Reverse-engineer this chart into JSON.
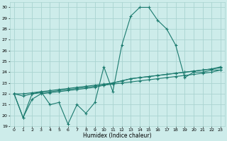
{
  "xlabel": "Humidex (Indice chaleur)",
  "bg_color": "#cdecea",
  "grid_color": "#aad4d0",
  "line_color": "#1a7a6e",
  "xlim": [
    -0.5,
    23.5
  ],
  "ylim": [
    19,
    30.5
  ],
  "yticks": [
    19,
    20,
    21,
    22,
    23,
    24,
    25,
    26,
    27,
    28,
    29,
    30
  ],
  "xticks": [
    0,
    1,
    2,
    3,
    4,
    5,
    6,
    7,
    8,
    9,
    10,
    11,
    12,
    13,
    14,
    15,
    16,
    17,
    18,
    19,
    20,
    21,
    22,
    23
  ],
  "line1_y": [
    22.0,
    19.8,
    22.0,
    22.2,
    21.0,
    21.2,
    19.2,
    21.0,
    20.2,
    21.2,
    24.5,
    22.2,
    26.5,
    29.2,
    30.0,
    30.0,
    28.8,
    28.0,
    26.5,
    23.5,
    24.0,
    24.0,
    24.2,
    24.2
  ],
  "line2_y": [
    22.0,
    22.0,
    22.1,
    22.2,
    22.3,
    22.4,
    22.5,
    22.6,
    22.7,
    22.8,
    22.9,
    23.0,
    23.2,
    23.4,
    23.5,
    23.6,
    23.7,
    23.8,
    23.9,
    24.0,
    24.1,
    24.2,
    24.3,
    24.5
  ],
  "line3_y": [
    22.0,
    21.8,
    22.0,
    22.1,
    22.2,
    22.3,
    22.4,
    22.5,
    22.6,
    22.7,
    22.8,
    22.9,
    23.0,
    23.1,
    23.2,
    23.3,
    23.4,
    23.5,
    23.6,
    23.7,
    23.8,
    23.9,
    24.0,
    24.2
  ],
  "line4_y": [
    22.0,
    19.8,
    21.5,
    22.0,
    22.1,
    22.2,
    22.3,
    22.4,
    22.5,
    22.6,
    22.8,
    23.0,
    23.2,
    23.4,
    23.5,
    23.6,
    23.7,
    23.8,
    23.9,
    24.0,
    24.1,
    24.2,
    24.3,
    24.4
  ]
}
